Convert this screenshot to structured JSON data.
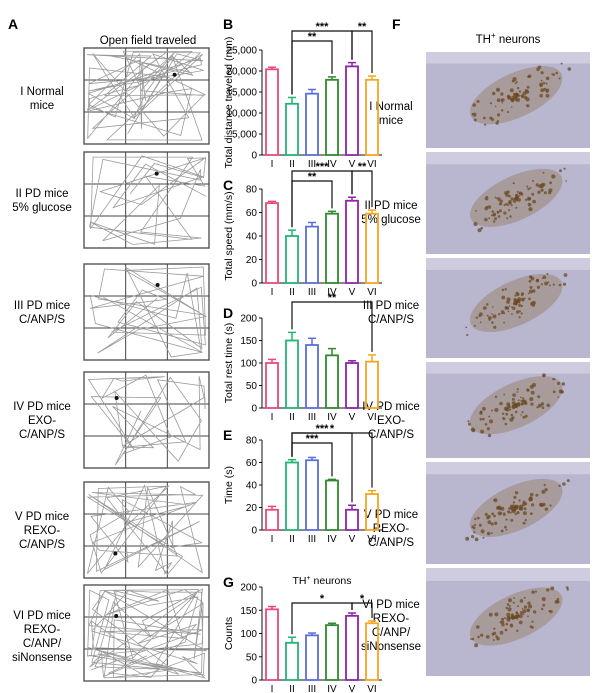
{
  "panel_letters": {
    "a": "A",
    "b": "B",
    "c": "C",
    "d": "D",
    "e": "E",
    "f": "F",
    "g": "G"
  },
  "panel_a": {
    "title": "Open field traveled"
  },
  "panel_f": {
    "title_main": "TH",
    "title_sup": "+",
    "title_rest": " neurons"
  },
  "groups": [
    {
      "roman": "I",
      "lines": [
        "Normal",
        "mice"
      ],
      "label_first": "I Normal",
      "label_rest": [
        "mice"
      ]
    },
    {
      "roman": "II",
      "label_first": "II PD mice",
      "label_rest": [
        "5% glucose"
      ]
    },
    {
      "roman": "III",
      "label_first": "III PD mice",
      "label_rest": [
        "C/ANP/S"
      ]
    },
    {
      "roman": "IV",
      "label_first": "IV PD mice",
      "label_rest": [
        "EXO-",
        "C/ANP/S"
      ]
    },
    {
      "roman": "V",
      "label_first": "V PD mice",
      "label_rest": [
        "REXO-",
        "C/ANP/S"
      ]
    },
    {
      "roman": "VI",
      "label_first": "VI PD mice",
      "label_rest": [
        "REXO-",
        "C/ANP/",
        "siNonsense"
      ]
    }
  ],
  "colors": {
    "I": "#e8497a",
    "II": "#22b573",
    "III": "#5b6fd6",
    "IV": "#2e8b2e",
    "V": "#8e24aa",
    "VI": "#f5a623",
    "open_field_path": "#9a9a9a",
    "tissue": "#b9b6d0",
    "stain": "#8a6a3c"
  },
  "chart_data": [
    {
      "panel": "B",
      "type": "bar",
      "categories": [
        "I",
        "II",
        "III",
        "IV",
        "V",
        "VI"
      ],
      "values": [
        20400,
        12200,
        14600,
        17900,
        21100,
        17900
      ],
      "errors": [
        500,
        1500,
        1000,
        700,
        900,
        900
      ],
      "ylabel": "Total distance traveled (mm)",
      "ylim": [
        0,
        25000
      ],
      "yticks": [
        0,
        5000,
        10000,
        15000,
        20000,
        25000
      ],
      "ytick_labels": [
        "0",
        "5,000",
        "10,000",
        "15,000",
        "20,000",
        "25,000"
      ],
      "significance": [
        {
          "from": "II",
          "to": "IV",
          "label": "**"
        },
        {
          "from": "II",
          "to": "V",
          "label": "***"
        },
        {
          "from": "V",
          "to": "VI",
          "label": "**"
        }
      ]
    },
    {
      "panel": "C",
      "type": "bar",
      "categories": [
        "I",
        "II",
        "III",
        "IV",
        "V",
        "VI"
      ],
      "values": [
        68,
        40,
        48,
        59,
        70,
        59
      ],
      "errors": [
        1.5,
        5,
        3.5,
        2,
        3,
        3
      ],
      "ylabel": "Total speed (mm/s)",
      "ylim": [
        0,
        80
      ],
      "yticks": [
        0,
        20,
        40,
        60,
        80
      ],
      "ytick_labels": [
        "0",
        "20",
        "40",
        "60",
        "80"
      ],
      "significance": [
        {
          "from": "II",
          "to": "IV",
          "label": "**"
        },
        {
          "from": "II",
          "to": "V",
          "label": "***"
        },
        {
          "from": "V",
          "to": "VI",
          "label": "**"
        }
      ]
    },
    {
      "panel": "D",
      "type": "bar",
      "categories": [
        "I",
        "II",
        "III",
        "IV",
        "V",
        "VI"
      ],
      "values": [
        100,
        150,
        140,
        117,
        100,
        103
      ],
      "errors": [
        8,
        18,
        15,
        15,
        5,
        15
      ],
      "ylabel": "Total rest time (s)",
      "ylim": [
        0,
        200
      ],
      "yticks": [
        0,
        50,
        100,
        150,
        200
      ],
      "ytick_labels": [
        "0",
        "50",
        "100",
        "150",
        "200"
      ],
      "significance": [
        {
          "from": "II",
          "to": "VI",
          "label": "**"
        }
      ]
    },
    {
      "panel": "E",
      "type": "bar",
      "categories": [
        "I",
        "II",
        "III",
        "IV",
        "V",
        "VI"
      ],
      "values": [
        18,
        60,
        62,
        44,
        18,
        32
      ],
      "errors": [
        3,
        2.5,
        2.5,
        1,
        4,
        3
      ],
      "ylabel": "Time (s)",
      "ylim": [
        0,
        80
      ],
      "yticks": [
        0,
        20,
        40,
        60,
        80
      ],
      "ytick_labels": [
        "0",
        "20",
        "40",
        "60",
        "80"
      ],
      "significance": [
        {
          "from": "II",
          "to": "IV",
          "label": "***"
        },
        {
          "from": "II",
          "to": "V",
          "label": "***"
        },
        {
          "from": "II",
          "to": "VI",
          "label": "*"
        }
      ]
    },
    {
      "panel": "G",
      "type": "bar",
      "title": "TH+ neurons",
      "title_main": "TH",
      "title_sup": "+",
      "title_rest": " neurons",
      "categories": [
        "I",
        "II",
        "III",
        "IV",
        "V",
        "VI"
      ],
      "values": [
        152,
        80,
        96,
        118,
        138,
        122
      ],
      "errors": [
        6,
        12,
        5,
        4,
        6,
        5
      ],
      "ylabel": "Counts",
      "ylim": [
        0,
        200
      ],
      "yticks": [
        0,
        50,
        100,
        150,
        200
      ],
      "ytick_labels": [
        "0",
        "50",
        "100",
        "150",
        "200"
      ],
      "significance": [
        {
          "from": "II",
          "to": "V",
          "label": "*"
        },
        {
          "from": "V",
          "to": "VI",
          "label": "*"
        }
      ]
    }
  ]
}
